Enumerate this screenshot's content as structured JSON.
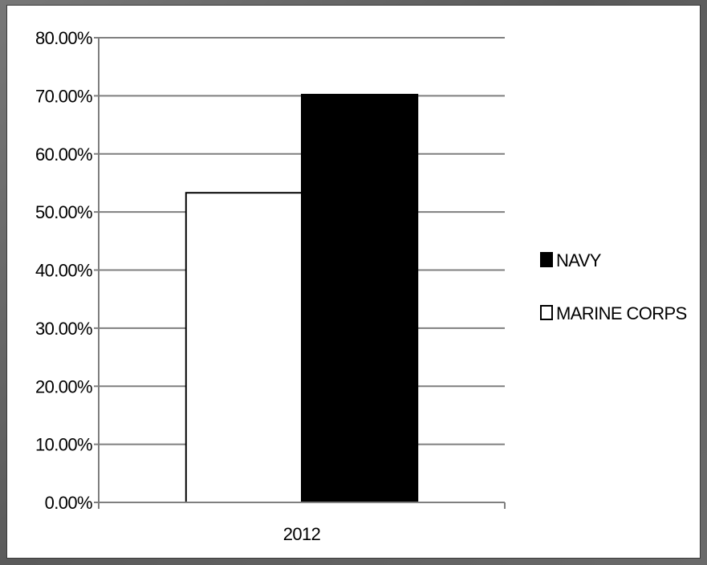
{
  "chart_data": {
    "type": "bar",
    "categories": [
      "2012"
    ],
    "series": [
      {
        "name": "MARINE CORPS",
        "values": [
          53.3
        ],
        "color": "#ffffff",
        "stroke": "#000000"
      },
      {
        "name": "NAVY",
        "values": [
          70.2
        ],
        "color": "#000000",
        "stroke": "#000000"
      }
    ],
    "ylim": [
      0,
      80
    ],
    "y_ticks": [
      {
        "value": 0,
        "label": "0.00%"
      },
      {
        "value": 10,
        "label": "10.00%"
      },
      {
        "value": 20,
        "label": "20.00%"
      },
      {
        "value": 30,
        "label": "30.00%"
      },
      {
        "value": 40,
        "label": "40.00%"
      },
      {
        "value": 50,
        "label": "50.00%"
      },
      {
        "value": 60,
        "label": "60.00%"
      },
      {
        "value": 70,
        "label": "70.00%"
      },
      {
        "value": 80,
        "label": "80.00%"
      }
    ],
    "grid": true,
    "legend_position": "right",
    "legend": [
      {
        "name": "NAVY",
        "fill": "#000000"
      },
      {
        "name": "MARINE CORPS",
        "fill": "#ffffff"
      }
    ]
  }
}
